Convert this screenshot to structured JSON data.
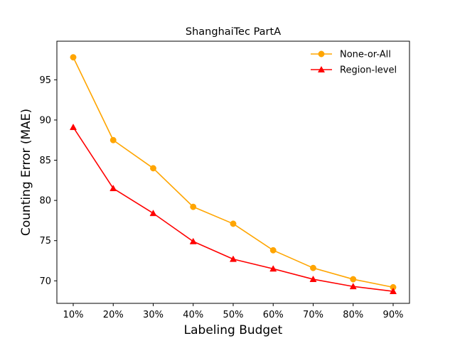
{
  "chart_data": {
    "type": "line",
    "title": "ShanghaiTec PartA",
    "xlabel": "Labeling Budget",
    "ylabel": "Counting Error (MAE)",
    "categories": [
      "10%",
      "20%",
      "30%",
      "40%",
      "50%",
      "60%",
      "70%",
      "80%",
      "90%"
    ],
    "ylim": [
      67.2,
      99.8
    ],
    "yticks": [
      70,
      75,
      80,
      85,
      90,
      95
    ],
    "grid": false,
    "legend_position": "top-right",
    "series": [
      {
        "name": "None-or-All",
        "color": "#ffa500",
        "marker": "circle",
        "values": [
          97.8,
          87.5,
          84.0,
          79.2,
          77.1,
          73.8,
          71.6,
          70.2,
          69.2
        ]
      },
      {
        "name": "Region-level",
        "color": "#ff0000",
        "marker": "triangle",
        "values": [
          89.1,
          81.5,
          78.4,
          74.9,
          72.7,
          71.5,
          70.2,
          69.3,
          68.7
        ]
      }
    ]
  }
}
